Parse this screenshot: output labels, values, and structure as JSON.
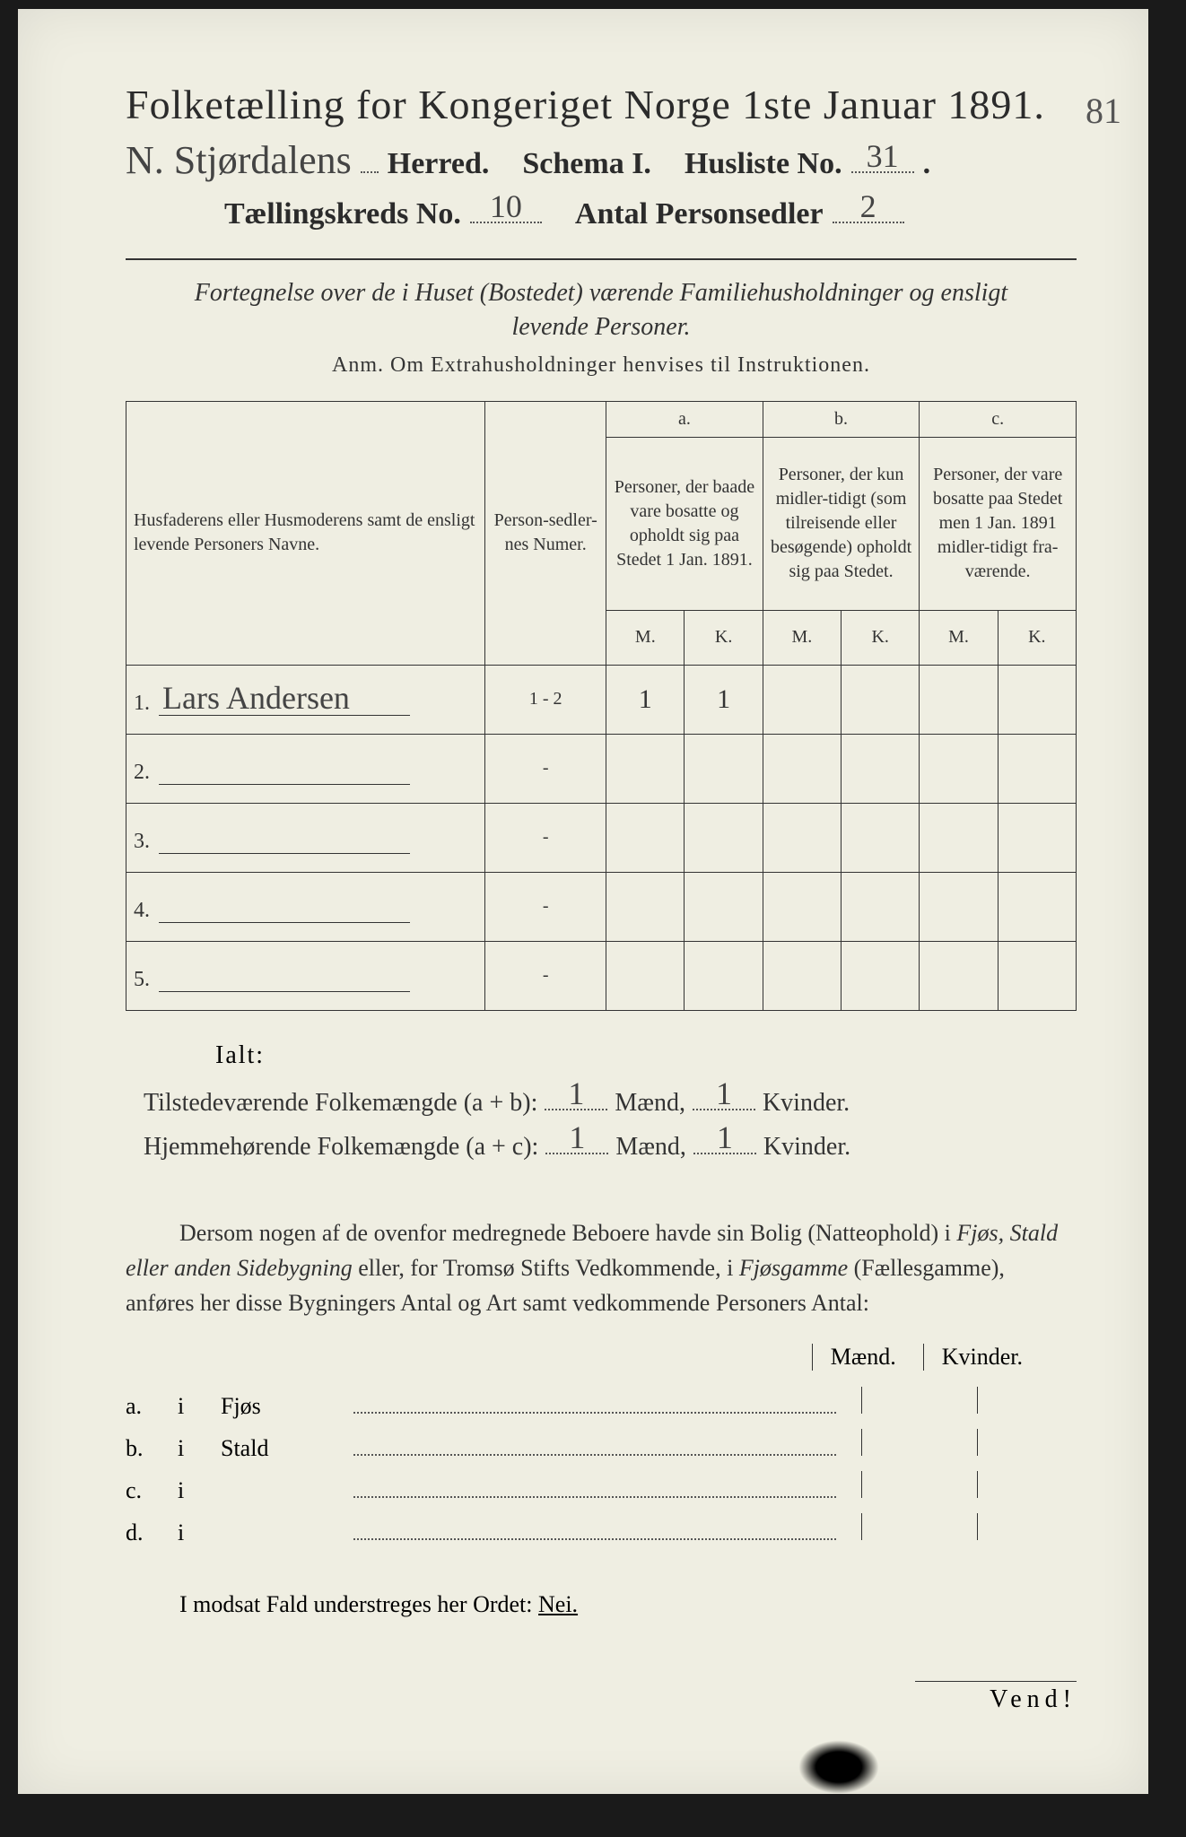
{
  "colors": {
    "paper": "#efeee2",
    "ink": "#2b2b2b",
    "rule": "#333333",
    "dotted": "#555555",
    "background": "#1a1a1a"
  },
  "typography": {
    "title_fontsize": 46,
    "form_fontsize": 34,
    "body_fontsize": 26,
    "table_fontsize": 20,
    "script_family": "Brush Script MT"
  },
  "header": {
    "title": "Folketælling for Kongeriget Norge 1ste Januar 1891.",
    "herred_label": "Herred.",
    "herred_value": "N. Stjørdalens",
    "schema_label": "Schema I.",
    "husliste_label": "Husliste No.",
    "husliste_value": "31",
    "kreds_label": "Tællingskreds No.",
    "kreds_value": "10",
    "antal_label": "Antal Personsedler",
    "antal_value": "2",
    "margin_note": "81"
  },
  "subtitle": {
    "line": "Fortegnelse over de i Huset (Bostedet) værende Familiehusholdninger og ensligt levende Personer.",
    "anm": "Anm.  Om Extrahusholdninger henvises til Instruktionen."
  },
  "table": {
    "col_name": "Husfaderens eller Husmoderens samt de ensligt levende Personers Navne.",
    "col_num": "Person-sedler-nes Numer.",
    "col_a_top": "a.",
    "col_a": "Personer, der baade vare bosatte og opholdt sig paa Stedet 1 Jan. 1891.",
    "col_b_top": "b.",
    "col_b": "Personer, der kun midler-tidigt (som tilreisende eller besøgende) opholdt sig paa Stedet.",
    "col_c_top": "c.",
    "col_c": "Personer, der vare bosatte paa Stedet men 1 Jan. 1891 midler-tidigt fra-værende.",
    "m": "M.",
    "k": "K.",
    "rows": [
      {
        "n": "1.",
        "name": "Lars Andersen",
        "num": "1 - 2",
        "a_m": "1",
        "a_k": "1",
        "b_m": "",
        "b_k": "",
        "c_m": "",
        "c_k": ""
      },
      {
        "n": "2.",
        "name": "",
        "num": "-",
        "a_m": "",
        "a_k": "",
        "b_m": "",
        "b_k": "",
        "c_m": "",
        "c_k": ""
      },
      {
        "n": "3.",
        "name": "",
        "num": "-",
        "a_m": "",
        "a_k": "",
        "b_m": "",
        "b_k": "",
        "c_m": "",
        "c_k": ""
      },
      {
        "n": "4.",
        "name": "",
        "num": "-",
        "a_m": "",
        "a_k": "",
        "b_m": "",
        "b_k": "",
        "c_m": "",
        "c_k": ""
      },
      {
        "n": "5.",
        "name": "",
        "num": "-",
        "a_m": "",
        "a_k": "",
        "b_m": "",
        "b_k": "",
        "c_m": "",
        "c_k": ""
      }
    ]
  },
  "totals": {
    "ialt": "Ialt:",
    "line1_label": "Tilstedeværende Folkemængde (a + b):",
    "line2_label": "Hjemmehørende Folkemængde (a + c):",
    "maend": "Mænd,",
    "kvinder": "Kvinder.",
    "line1_m": "1",
    "line1_k": "1",
    "line2_m": "1",
    "line2_k": "1"
  },
  "para": {
    "text1": "Dersom nogen af de ovenfor medregnede Beboere havde sin Bolig (Natteophold) i ",
    "it1": "Fjøs, Stald eller anden Sidebygning",
    "text2": " eller, for Tromsø Stifts Vedkommende, i ",
    "it2": "Fjøsgamme",
    "text3": " (Fællesgamme), anføres her disse Bygningers Antal og Art samt vedkommende Personers Antal:"
  },
  "mk": {
    "m": "Mænd.",
    "k": "Kvinder."
  },
  "abcd": {
    "rows": [
      {
        "label": "a.",
        "i": "i",
        "kind": "Fjøs"
      },
      {
        "label": "b.",
        "i": "i",
        "kind": "Stald"
      },
      {
        "label": "c.",
        "i": "i",
        "kind": ""
      },
      {
        "label": "d.",
        "i": "i",
        "kind": ""
      }
    ]
  },
  "nei": {
    "text": "I modsat Fald understreges her Ordet: ",
    "word": "Nei."
  },
  "vend": "Vend!"
}
